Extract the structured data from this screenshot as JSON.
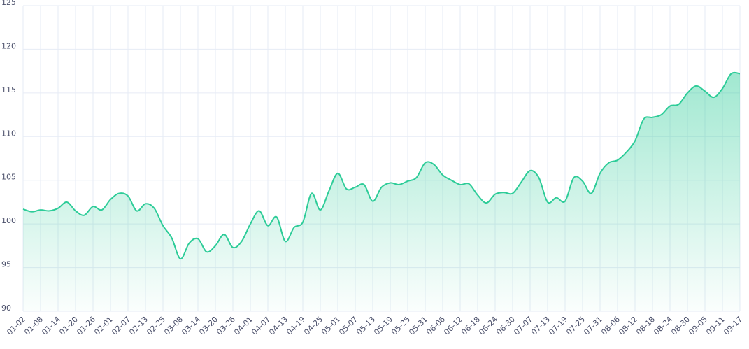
{
  "chart_data": {
    "type": "line",
    "categories": [
      "01-02",
      null,
      "01-08",
      null,
      "01-14",
      null,
      "01-20",
      null,
      "01-26",
      null,
      "02-01",
      null,
      "02-07",
      null,
      "02-13",
      null,
      "02-25",
      null,
      "03-08",
      null,
      "03-14",
      null,
      "03-20",
      null,
      "03-26",
      null,
      "04-01",
      null,
      "04-07",
      null,
      "04-13",
      null,
      "04-19",
      null,
      "04-25",
      null,
      "05-01",
      null,
      "05-07",
      null,
      "05-13",
      null,
      "05-19",
      null,
      "05-25",
      null,
      "05-31",
      null,
      "06-06",
      null,
      "06-12",
      null,
      "06-18",
      null,
      "06-24",
      null,
      "06-30",
      null,
      "07-07",
      null,
      "07-13",
      null,
      "07-19",
      null,
      "07-25",
      null,
      "07-31",
      null,
      "08-06",
      null,
      "08-12",
      null,
      "08-18",
      null,
      "08-24",
      null,
      "08-30",
      null,
      "09-05",
      null,
      "09-11",
      null,
      "09-17"
    ],
    "values": [
      101.7,
      101.4,
      101.6,
      101.5,
      101.8,
      102.5,
      101.5,
      101.0,
      102.0,
      101.6,
      102.8,
      103.5,
      103.2,
      101.5,
      102.3,
      101.8,
      99.8,
      98.4,
      96.0,
      97.8,
      98.3,
      96.8,
      97.5,
      98.8,
      97.3,
      98.0,
      100.0,
      101.5,
      99.8,
      100.8,
      98.0,
      99.6,
      100.2,
      103.5,
      101.6,
      103.8,
      105.8,
      104.0,
      104.2,
      104.5,
      102.6,
      104.2,
      104.7,
      104.5,
      104.9,
      105.3,
      107.0,
      106.8,
      105.6,
      105.0,
      104.5,
      104.6,
      103.3,
      102.4,
      103.4,
      103.6,
      103.5,
      104.8,
      106.1,
      105.3,
      102.5,
      103.0,
      102.6,
      105.3,
      104.9,
      103.5,
      105.8,
      107.0,
      107.3,
      108.2,
      109.5,
      112.0,
      112.2,
      112.5,
      113.5,
      113.7,
      115.0,
      115.8,
      115.2,
      114.5,
      115.5,
      117.2,
      117.2
    ],
    "color": "#2dcc98",
    "ylim": [
      90,
      125
    ],
    "yticks": [
      90,
      95,
      100,
      105,
      110,
      115,
      120,
      125
    ],
    "grid": true
  }
}
